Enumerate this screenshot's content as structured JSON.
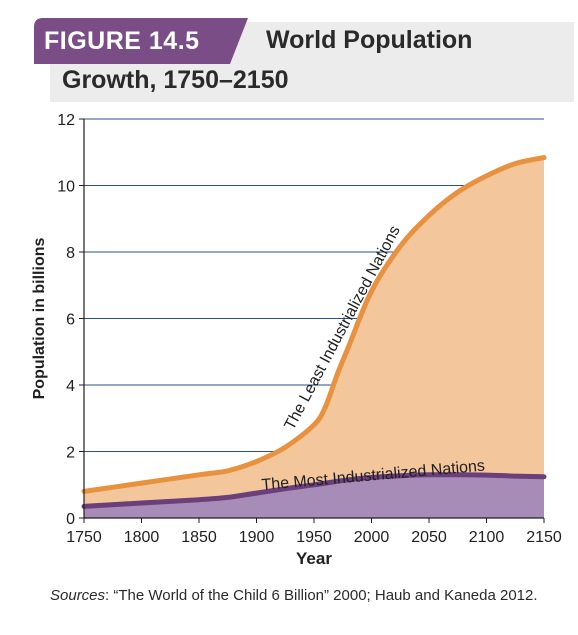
{
  "figure": {
    "label": "FIGURE 14.5",
    "title_line1": "World Population",
    "title_line2": "Growth, 1750–2150"
  },
  "sources": {
    "prefix": "Sources",
    "text": ": “The World of the Child 6 Billion” 2000; Haub and Kaneda 2012."
  },
  "colors": {
    "tab": "#7a4d86",
    "grid": "#2e4f8a",
    "least_line": "#e8913e",
    "least_fill": "#f4c69b",
    "most_line": "#6a3f7c",
    "most_fill": "#a88cb8"
  },
  "chart_data": {
    "type": "area",
    "stacked": true,
    "xlabel": "Year",
    "ylabel": "Population in billions",
    "xlim": [
      1750,
      2150
    ],
    "ylim": [
      0,
      12
    ],
    "x_ticks": [
      1750,
      1800,
      1850,
      1900,
      1950,
      2000,
      2050,
      2100,
      2150
    ],
    "y_ticks": [
      0,
      2,
      4,
      6,
      8,
      10,
      12
    ],
    "grid": "horizontal",
    "x": [
      1750,
      1800,
      1850,
      1875,
      1900,
      1925,
      1950,
      1960,
      1970,
      1980,
      2000,
      2025,
      2050,
      2075,
      2100,
      2125,
      2150
    ],
    "series": [
      {
        "name": "The Most Industrialized Nations",
        "values": [
          0.35,
          0.45,
          0.55,
          0.62,
          0.75,
          0.88,
          1.0,
          1.05,
          1.1,
          1.15,
          1.22,
          1.27,
          1.3,
          1.3,
          1.29,
          1.26,
          1.24
        ]
      },
      {
        "name": "The Least Industrialized Nations",
        "values": [
          0.45,
          0.6,
          0.75,
          0.8,
          0.95,
          1.25,
          1.8,
          2.3,
          3.2,
          4.0,
          5.6,
          6.9,
          7.8,
          8.5,
          9.0,
          9.4,
          9.6
        ]
      }
    ]
  }
}
